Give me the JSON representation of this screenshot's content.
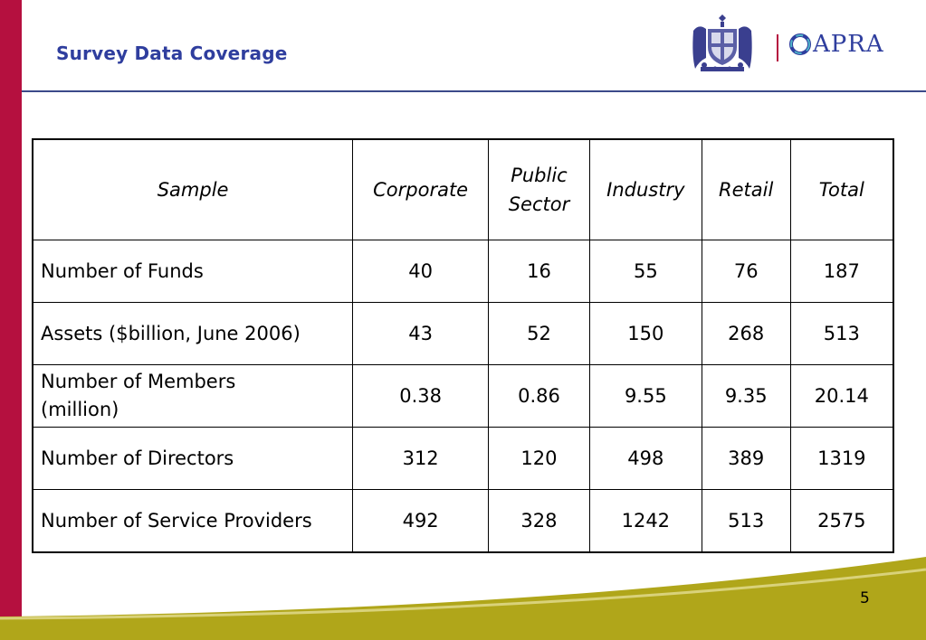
{
  "slide": {
    "title": "Survey Data Coverage",
    "page_number": "5"
  },
  "logos": {
    "apra_text": "APRA",
    "crest_icon": "coat-of-arms-icon",
    "apra_icon": "apra-ring-icon"
  },
  "colors": {
    "accent_red": "#b5103f",
    "title_blue": "#2f3e9e",
    "footer_olive": "#b0a61a"
  },
  "table": {
    "headers": [
      "Sample",
      "Corporate",
      "Public Sector",
      "Industry",
      "Retail",
      "Total"
    ],
    "header_public_line1": "Public",
    "header_public_line2": "Sector",
    "rows": [
      {
        "label": "Number of Funds",
        "corporate": "40",
        "public_sector": "16",
        "industry": "55",
        "retail": "76",
        "total": "187"
      },
      {
        "label": "Assets ($billion, June 2006)",
        "corporate": "43",
        "public_sector": "52",
        "industry": "150",
        "retail": "268",
        "total": "513"
      },
      {
        "label_line1": "Number of Members",
        "label_line2": "(million)",
        "corporate": "0.38",
        "public_sector": "0.86",
        "industry": "9.55",
        "retail": "9.35",
        "total": "20.14"
      },
      {
        "label": "Number of Directors",
        "corporate": "312",
        "public_sector": "120",
        "industry": "498",
        "retail": "389",
        "total": "1319"
      },
      {
        "label": "Number of Service Providers",
        "corporate": "492",
        "public_sector": "328",
        "industry": "1242",
        "retail": "513",
        "total": "2575"
      }
    ]
  }
}
